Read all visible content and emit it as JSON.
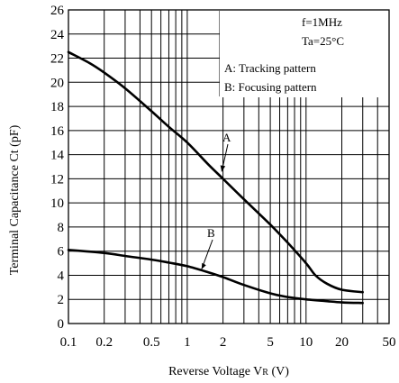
{
  "chart_data": {
    "type": "line",
    "xlabel": "Reverse Voltage V",
    "xlabel_sub": "R",
    "xlabel_unit": " (V)",
    "ylabel": "Terminal Capacitance Ct (pF)",
    "x_scale": "log",
    "xlim": [
      0.1,
      50
    ],
    "ylim": [
      0,
      26
    ],
    "grid": true,
    "x_ticks": [
      {
        "value": 0.1,
        "label": "0.1"
      },
      {
        "value": 0.2,
        "label": "0.2"
      },
      {
        "value": 0.5,
        "label": "0.5"
      },
      {
        "value": 1,
        "label": "1"
      },
      {
        "value": 2,
        "label": "2"
      },
      {
        "value": 5,
        "label": "5"
      },
      {
        "value": 10,
        "label": "10"
      },
      {
        "value": 20,
        "label": "20"
      },
      {
        "value": 50,
        "label": "50"
      }
    ],
    "y_ticks": [
      0,
      2,
      4,
      6,
      8,
      10,
      12,
      14,
      16,
      18,
      20,
      22,
      24,
      26
    ],
    "conditions": [
      "f=1MHz",
      "Ta=25°C"
    ],
    "legend": [
      "A: Tracking pattern",
      "B: Focusing pattern"
    ],
    "series": [
      {
        "name": "A",
        "x": [
          0.1,
          0.15,
          0.2,
          0.3,
          0.5,
          0.7,
          1,
          1.5,
          2,
          3,
          5,
          7,
          10,
          12,
          15,
          20,
          30
        ],
        "y": [
          22.5,
          21.6,
          20.8,
          19.5,
          17.6,
          16.3,
          15.0,
          13.2,
          12.0,
          10.3,
          8.2,
          6.7,
          5.0,
          4.0,
          3.3,
          2.8,
          2.6
        ]
      },
      {
        "name": "B",
        "x": [
          0.1,
          0.2,
          0.3,
          0.5,
          0.7,
          1,
          1.5,
          2,
          3,
          5,
          7,
          10,
          15,
          20,
          30
        ],
        "y": [
          6.1,
          5.85,
          5.6,
          5.3,
          5.05,
          4.75,
          4.25,
          3.85,
          3.2,
          2.5,
          2.2,
          2.0,
          1.85,
          1.75,
          1.7
        ]
      }
    ]
  }
}
